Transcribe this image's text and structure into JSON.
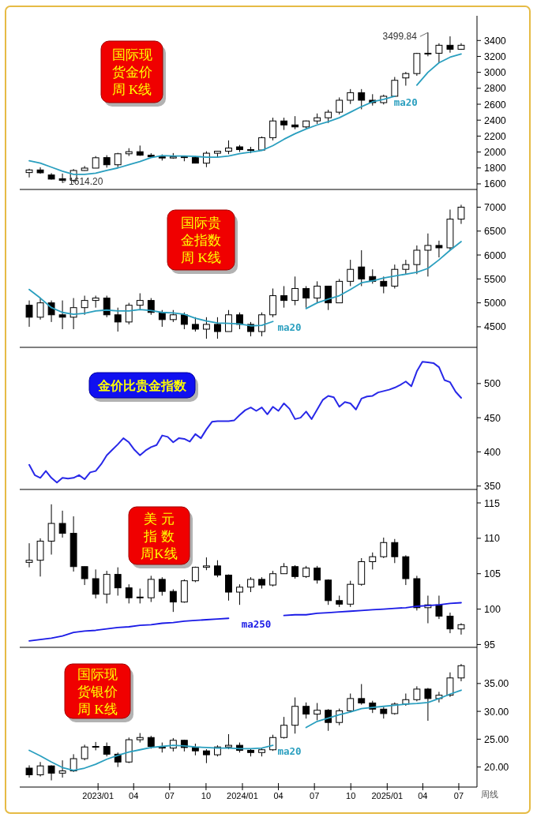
{
  "chart_data": [
    {
      "type": "candlestick",
      "title": "国际现货金价周 K线",
      "tick_labels": "y",
      "xlim": [
        "2022-06-17",
        "2025-08-16"
      ],
      "ylim": [
        1530,
        3710
      ],
      "yticks": [
        1600,
        1800,
        2000,
        2200,
        2400,
        2600,
        2800,
        3000,
        3200,
        3400
      ],
      "x": [
        "2022-07-11",
        "2022-08-08",
        "2022-09-05",
        "2022-10-03",
        "2022-10-31",
        "2022-11-28",
        "2022-12-26",
        "2023-01-23",
        "2023-02-20",
        "2023-03-20",
        "2023-04-17",
        "2023-05-15",
        "2023-06-12",
        "2023-07-10",
        "2023-08-07",
        "2023-09-04",
        "2023-10-02",
        "2023-10-30",
        "2023-11-27",
        "2023-12-25",
        "2024-01-22",
        "2024-02-19",
        "2024-03-18",
        "2024-04-15",
        "2024-05-13",
        "2024-06-10",
        "2024-07-08",
        "2024-08-05",
        "2024-09-02",
        "2024-09-30",
        "2024-10-28",
        "2024-11-25",
        "2024-12-23",
        "2025-01-20",
        "2025-02-17",
        "2025-03-17",
        "2025-04-14",
        "2025-05-12",
        "2025-06-09",
        "2025-07-07"
      ],
      "ohlc": [
        [
          1742,
          1790,
          1681,
          1775
        ],
        [
          1775,
          1808,
          1727,
          1739
        ],
        [
          1712,
          1735,
          1654,
          1660
        ],
        [
          1665,
          1730,
          1614.2,
          1645
        ],
        [
          1645,
          1786,
          1617,
          1768
        ],
        [
          1768,
          1824,
          1765,
          1798
        ],
        [
          1798,
          1949,
          1797,
          1928
        ],
        [
          1930,
          1960,
          1804,
          1840
        ],
        [
          1840,
          1990,
          1809,
          1978
        ],
        [
          1978,
          2048,
          1950,
          2004
        ],
        [
          2004,
          2081,
          1952,
          1960
        ],
        [
          1960,
          1985,
          1932,
          1940
        ],
        [
          1940,
          1970,
          1893,
          1925
        ],
        [
          1925,
          1987,
          1915,
          1940
        ],
        [
          1940,
          1945,
          1884,
          1930
        ],
        [
          1930,
          1948,
          1858,
          1860
        ],
        [
          1860,
          2009,
          1810,
          1985
        ],
        [
          1985,
          2015,
          1932,
          2010
        ],
        [
          2010,
          2146,
          1973,
          2050
        ],
        [
          2065,
          2088,
          2001,
          2030
        ],
        [
          2030,
          2065,
          1985,
          2025
        ],
        [
          2025,
          2195,
          2016,
          2180
        ],
        [
          2180,
          2431,
          2146,
          2390
        ],
        [
          2390,
          2431,
          2277,
          2340
        ],
        [
          2340,
          2450,
          2286,
          2315
        ],
        [
          2315,
          2395,
          2295,
          2390
        ],
        [
          2390,
          2484,
          2353,
          2430
        ],
        [
          2430,
          2531,
          2364,
          2500
        ],
        [
          2500,
          2685,
          2472,
          2650
        ],
        [
          2650,
          2790,
          2603,
          2745
        ],
        [
          2745,
          2790,
          2536,
          2650
        ],
        [
          2650,
          2726,
          2583,
          2620
        ],
        [
          2620,
          2720,
          2597,
          2700
        ],
        [
          2700,
          2942,
          2690,
          2900
        ],
        [
          2930,
          3005,
          2833,
          2985
        ],
        [
          2985,
          3245,
          2957,
          3237
        ],
        [
          3237,
          3499.84,
          3202,
          3240
        ],
        [
          3240,
          3365,
          3120,
          3340
        ],
        [
          3340,
          3452,
          3247,
          3290
        ],
        [
          3290,
          3366,
          3282,
          3340
        ]
      ],
      "series": [
        {
          "type": "line",
          "name": "ma20",
          "color": "#2a9fbf",
          "values": [
            1890,
            1860,
            1810,
            1760,
            1720,
            1720,
            1735,
            1770,
            1800,
            1840,
            1880,
            1930,
            1955,
            1950,
            1950,
            1945,
            1935,
            1935,
            1950,
            1980,
            2000,
            2020,
            2080,
            2160,
            2230,
            2290,
            2340,
            2380,
            2430,
            2500,
            2570,
            2630,
            2660,
            2700,
            null,
            2840,
            3000,
            3120,
            3190,
            3230
          ]
        }
      ],
      "annotations": [
        {
          "text": "3499.84",
          "x": "2025-04-14",
          "y": 3499.84
        },
        {
          "text": "1614.20",
          "x": "2022-10-03",
          "y": 1614.2
        }
      ]
    },
    {
      "type": "candlestick",
      "title": "国际贵金指数周 K线",
      "tick_labels": "y",
      "xlim": [
        "2022-06-17",
        "2025-08-16"
      ],
      "ylim": [
        4070,
        7370
      ],
      "yticks": [
        4500,
        5000,
        5500,
        6000,
        6500,
        7000
      ],
      "x": [
        "2022-07-11",
        "2022-08-08",
        "2022-09-05",
        "2022-10-03",
        "2022-10-31",
        "2022-11-28",
        "2022-12-26",
        "2023-01-23",
        "2023-02-20",
        "2023-03-20",
        "2023-04-17",
        "2023-05-15",
        "2023-06-12",
        "2023-07-10",
        "2023-08-07",
        "2023-09-04",
        "2023-10-02",
        "2023-10-30",
        "2023-11-27",
        "2023-12-25",
        "2024-01-22",
        "2024-02-19",
        "2024-03-18",
        "2024-04-15",
        "2024-05-13",
        "2024-06-10",
        "2024-07-08",
        "2024-08-05",
        "2024-09-02",
        "2024-09-30",
        "2024-10-28",
        "2024-11-25",
        "2024-12-23",
        "2025-01-20",
        "2025-02-17",
        "2025-03-17",
        "2025-04-14",
        "2025-05-12",
        "2025-06-09",
        "2025-07-07"
      ],
      "ohlc": [
        [
          4950,
          5050,
          4500,
          4700
        ],
        [
          4700,
          5100,
          4650,
          5000
        ],
        [
          5000,
          5050,
          4600,
          4750
        ],
        [
          4750,
          5050,
          4450,
          4700
        ],
        [
          4700,
          5100,
          4450,
          4900
        ],
        [
          4900,
          5150,
          4750,
          5050
        ],
        [
          5050,
          5150,
          4900,
          5100
        ],
        [
          5100,
          5150,
          4700,
          4750
        ],
        [
          4750,
          4900,
          4400,
          4600
        ],
        [
          4600,
          5000,
          4550,
          4950
        ],
        [
          4950,
          5200,
          4850,
          5050
        ],
        [
          5050,
          5100,
          4750,
          4800
        ],
        [
          4800,
          4850,
          4500,
          4650
        ],
        [
          4650,
          4850,
          4600,
          4750
        ],
        [
          4750,
          4800,
          4450,
          4550
        ],
        [
          4550,
          4700,
          4400,
          4450
        ],
        [
          4450,
          4700,
          4250,
          4550
        ],
        [
          4550,
          4700,
          4250,
          4400
        ],
        [
          4400,
          4850,
          4400,
          4750
        ],
        [
          4750,
          4800,
          4450,
          4550
        ],
        [
          4550,
          4600,
          4300,
          4400
        ],
        [
          4400,
          4800,
          4300,
          4750
        ],
        [
          4750,
          5300,
          4700,
          5150
        ],
        [
          5150,
          5350,
          4900,
          5050
        ],
        [
          5050,
          5550,
          4950,
          5300
        ],
        [
          5300,
          5350,
          4900,
          5100
        ],
        [
          5100,
          5450,
          5000,
          5350
        ],
        [
          5350,
          5350,
          4850,
          5000
        ],
        [
          5000,
          5500,
          5000,
          5450
        ],
        [
          5450,
          5900,
          5350,
          5700
        ],
        [
          5750,
          6100,
          5350,
          5500
        ],
        [
          5550,
          5700,
          5400,
          5450
        ],
        [
          5450,
          5550,
          5200,
          5350
        ],
        [
          5350,
          5800,
          5300,
          5700
        ],
        [
          5700,
          5900,
          5600,
          5800
        ],
        [
          5800,
          6200,
          5600,
          6100
        ],
        [
          6100,
          6450,
          5550,
          6200
        ],
        [
          6200,
          6300,
          5950,
          6150
        ],
        [
          6150,
          6950,
          6100,
          6750
        ],
        [
          6750,
          7050,
          6650,
          7000
        ]
      ],
      "series": [
        {
          "type": "line",
          "name": "ma20",
          "color": "#2a9fbf",
          "values": [
            5280,
            5100,
            4900,
            4800,
            4760,
            4780,
            4830,
            4850,
            4830,
            4830,
            4860,
            4840,
            4800,
            4790,
            4760,
            4680,
            4620,
            4580,
            4570,
            4560,
            4520,
            4530,
            4610,
            null,
            null,
            4880,
            5000,
            5080,
            5150,
            5280,
            5420,
            5460,
            5520,
            5560,
            5600,
            5640,
            5720,
            5900,
            6100,
            6280
          ]
        }
      ]
    },
    {
      "type": "line",
      "title": "金价比贵金指数",
      "tick_labels": "y",
      "xlim": [
        "2022-06-17",
        "2025-08-16"
      ],
      "ylim": [
        345,
        553
      ],
      "yticks": [
        350,
        400,
        450,
        500
      ],
      "x": [
        "2022-07-11",
        "2022-07-25",
        "2022-08-08",
        "2022-08-22",
        "2022-09-05",
        "2022-09-19",
        "2022-10-03",
        "2022-10-17",
        "2022-10-31",
        "2022-11-14",
        "2022-11-28",
        "2022-12-12",
        "2022-12-26",
        "2023-01-09",
        "2023-01-23",
        "2023-02-06",
        "2023-02-20",
        "2023-03-06",
        "2023-03-20",
        "2023-04-03",
        "2023-04-17",
        "2023-05-01",
        "2023-05-15",
        "2023-05-29",
        "2023-06-12",
        "2023-06-26",
        "2023-07-10",
        "2023-07-24",
        "2023-08-07",
        "2023-08-21",
        "2023-09-04",
        "2023-09-18",
        "2023-10-02",
        "2023-10-16",
        "2023-10-30",
        "2023-11-13",
        "2023-11-27",
        "2023-12-11",
        "2023-12-25",
        "2024-01-08",
        "2024-01-22",
        "2024-02-05",
        "2024-02-19",
        "2024-03-04",
        "2024-03-18",
        "2024-04-01",
        "2024-04-15",
        "2024-04-29",
        "2024-05-13",
        "2024-05-27",
        "2024-06-10",
        "2024-06-24",
        "2024-07-08",
        "2024-07-22",
        "2024-08-05",
        "2024-08-19",
        "2024-09-02",
        "2024-09-16",
        "2024-09-30",
        "2024-10-14",
        "2024-10-28",
        "2024-11-11",
        "2024-11-25",
        "2024-12-09",
        "2024-12-23",
        "2025-01-06",
        "2025-01-20",
        "2025-02-03",
        "2025-02-17",
        "2025-03-03",
        "2025-03-17",
        "2025-03-31",
        "2025-04-14",
        "2025-04-28",
        "2025-05-12",
        "2025-05-26",
        "2025-06-09",
        "2025-06-23",
        "2025-07-07"
      ],
      "series": [
        {
          "color": "#2828e8",
          "values": [
            381,
            366,
            362,
            372,
            362,
            355,
            362,
            361,
            362,
            366,
            360,
            370,
            372,
            382,
            395,
            403,
            411,
            420,
            414,
            403,
            395,
            402,
            407,
            410,
            424,
            422,
            414,
            420,
            419,
            415,
            426,
            420,
            433,
            444,
            445,
            445,
            445,
            446,
            454,
            461,
            465,
            460,
            465,
            455,
            466,
            460,
            471,
            463,
            448,
            450,
            459,
            448,
            462,
            476,
            482,
            480,
            466,
            473,
            471,
            462,
            478,
            481,
            482,
            487,
            489,
            491,
            494,
            498,
            503,
            496,
            518,
            532,
            531,
            530,
            524,
            505,
            502,
            488,
            479
          ]
        }
      ]
    },
    {
      "type": "candlestick",
      "title": "美 元指 数周K线",
      "tick_labels": "y",
      "xlim": [
        "2022-06-17",
        "2025-08-16"
      ],
      "ylim": [
        94.6,
        116.9
      ],
      "yticks": [
        95,
        100,
        105,
        110,
        115
      ],
      "x": [
        "2022-07-11",
        "2022-08-08",
        "2022-09-05",
        "2022-10-03",
        "2022-10-31",
        "2022-11-28",
        "2022-12-26",
        "2023-01-23",
        "2023-02-20",
        "2023-03-20",
        "2023-04-17",
        "2023-05-15",
        "2023-06-12",
        "2023-07-10",
        "2023-08-07",
        "2023-09-04",
        "2023-10-02",
        "2023-10-30",
        "2023-11-27",
        "2023-12-25",
        "2024-01-22",
        "2024-02-19",
        "2024-03-18",
        "2024-04-15",
        "2024-05-13",
        "2024-06-10",
        "2024-07-08",
        "2024-08-05",
        "2024-09-02",
        "2024-09-30",
        "2024-10-28",
        "2024-11-25",
        "2024-12-23",
        "2025-01-20",
        "2025-02-17",
        "2025-03-17",
        "2025-04-14",
        "2025-05-12",
        "2025-06-09",
        "2025-07-07"
      ],
      "ohlc": [
        [
          106.6,
          109.3,
          105.9,
          106.9
        ],
        [
          106.9,
          110.0,
          104.6,
          109.6
        ],
        [
          109.6,
          114.8,
          107.7,
          112.1
        ],
        [
          112.1,
          113.9,
          110.1,
          110.7
        ],
        [
          110.7,
          113.1,
          105.3,
          106.0
        ],
        [
          106.0,
          106.0,
          103.4,
          104.3
        ],
        [
          104.3,
          105.6,
          101.5,
          102.1
        ],
        [
          102.1,
          105.4,
          100.8,
          104.9
        ],
        [
          104.9,
          105.9,
          101.9,
          103.0
        ],
        [
          103.0,
          103.5,
          100.8,
          101.6
        ],
        [
          101.7,
          102.9,
          100.8,
          101.6
        ],
        [
          101.6,
          104.7,
          101.0,
          104.2
        ],
        [
          104.2,
          104.5,
          101.9,
          102.5
        ],
        [
          102.5,
          102.8,
          99.6,
          101.0
        ],
        [
          101.0,
          104.2,
          100.9,
          104.0
        ],
        [
          104.0,
          106.0,
          103.8,
          105.9
        ],
        [
          105.9,
          107.3,
          105.5,
          106.1
        ],
        [
          106.1,
          106.9,
          104.5,
          104.8
        ],
        [
          104.8,
          104.9,
          101.2,
          102.4
        ],
        [
          102.4,
          103.5,
          100.6,
          103.1
        ],
        [
          103.1,
          104.5,
          102.4,
          104.2
        ],
        [
          104.2,
          104.5,
          102.9,
          103.4
        ],
        [
          103.4,
          105.4,
          103.2,
          105.0
        ],
        [
          105.0,
          106.5,
          105.0,
          106.0
        ],
        [
          106.0,
          106.2,
          104.3,
          104.6
        ],
        [
          104.6,
          106.1,
          104.4,
          105.8
        ],
        [
          105.8,
          106.1,
          103.6,
          104.1
        ],
        [
          104.1,
          104.2,
          100.6,
          101.2
        ],
        [
          101.2,
          101.9,
          100.3,
          100.7
        ],
        [
          100.7,
          104.0,
          100.3,
          103.5
        ],
        [
          103.5,
          107.2,
          103.3,
          106.7
        ],
        [
          106.7,
          108.0,
          105.6,
          107.4
        ],
        [
          107.4,
          110.1,
          107.2,
          109.4
        ],
        [
          109.4,
          109.9,
          106.5,
          107.4
        ],
        [
          107.4,
          107.6,
          103.4,
          104.3
        ],
        [
          104.3,
          104.7,
          99.8,
          100.2
        ],
        [
          100.2,
          101.9,
          98.0,
          100.6
        ],
        [
          100.6,
          101.9,
          98.6,
          99.0
        ],
        [
          99.0,
          99.5,
          96.6,
          97.2
        ],
        [
          97.2,
          98.0,
          96.4,
          97.8
        ]
      ],
      "series": [
        {
          "type": "line",
          "name": "ma250",
          "color": "#1a1ae6",
          "values": [
            95.5,
            95.7,
            95.9,
            96.2,
            96.7,
            96.9,
            97.0,
            97.2,
            97.4,
            97.5,
            97.7,
            97.8,
            98.0,
            98.1,
            98.3,
            98.4,
            98.5,
            98.6,
            98.7,
            null,
            null,
            null,
            null,
            99.1,
            99.2,
            99.2,
            99.4,
            99.5,
            99.6,
            99.7,
            99.8,
            99.9,
            100.0,
            100.1,
            100.2,
            100.4,
            100.5,
            100.6,
            100.8,
            100.9
          ]
        }
      ]
    },
    {
      "type": "candlestick",
      "title": "国际现货银价周 K线",
      "xlim": [
        "2022-06-17",
        "2025-08-16"
      ],
      "ylim": [
        16.4,
        41.5
      ],
      "yticks": [
        {
          "value": 20,
          "label": "20.00"
        },
        {
          "value": 25,
          "label": "25.00"
        },
        {
          "value": 30,
          "label": "30.00"
        },
        {
          "value": 35,
          "label": "35.00"
        }
      ],
      "xticks": [
        {
          "value": "2023-01",
          "label": "2023/01"
        },
        {
          "value": "2023-04",
          "label": "04"
        },
        {
          "value": "2023-07",
          "label": "07"
        },
        {
          "value": "2023-10",
          "label": "10"
        },
        {
          "value": "2024-01",
          "label": "2024/01"
        },
        {
          "value": "2024-04",
          "label": "04"
        },
        {
          "value": "2024-07",
          "label": "07"
        },
        {
          "value": "2024-10",
          "label": "10"
        },
        {
          "value": "2025-01",
          "label": "2025/01"
        },
        {
          "value": "2025-04",
          "label": "04"
        },
        {
          "value": "2025-07",
          "label": "07"
        }
      ],
      "x": [
        "2022-07-11",
        "2022-08-08",
        "2022-09-05",
        "2022-10-03",
        "2022-10-31",
        "2022-11-28",
        "2022-12-26",
        "2023-01-23",
        "2023-02-20",
        "2023-03-20",
        "2023-04-17",
        "2023-05-15",
        "2023-06-12",
        "2023-07-10",
        "2023-08-07",
        "2023-09-04",
        "2023-10-02",
        "2023-10-30",
        "2023-11-27",
        "2023-12-25",
        "2024-01-22",
        "2024-02-19",
        "2024-03-18",
        "2024-04-15",
        "2024-05-13",
        "2024-06-10",
        "2024-07-08",
        "2024-08-05",
        "2024-09-02",
        "2024-09-30",
        "2024-10-28",
        "2024-11-25",
        "2024-12-23",
        "2025-01-20",
        "2025-02-17",
        "2025-03-17",
        "2025-04-14",
        "2025-05-12",
        "2025-06-09",
        "2025-07-07"
      ],
      "ohlc": [
        [
          19.8,
          20.3,
          18.1,
          18.6
        ],
        [
          18.6,
          20.9,
          18.3,
          20.2
        ],
        [
          20.2,
          20.3,
          17.6,
          18.9
        ],
        [
          18.9,
          21.2,
          18.1,
          19.3
        ],
        [
          19.3,
          22.3,
          19.1,
          21.5
        ],
        [
          21.5,
          24.0,
          21.2,
          23.6
        ],
        [
          23.6,
          24.5,
          23.0,
          23.7
        ],
        [
          23.7,
          24.4,
          21.9,
          22.3
        ],
        [
          22.3,
          22.6,
          20.0,
          20.9
        ],
        [
          20.9,
          25.3,
          20.7,
          24.9
        ],
        [
          24.9,
          26.1,
          24.4,
          25.3
        ],
        [
          25.3,
          25.6,
          23.3,
          23.7
        ],
        [
          23.7,
          24.4,
          22.6,
          23.4
        ],
        [
          23.4,
          25.2,
          22.8,
          24.8
        ],
        [
          24.8,
          24.9,
          22.8,
          23.5
        ],
        [
          23.5,
          24.2,
          22.1,
          22.9
        ],
        [
          22.9,
          23.2,
          20.7,
          22.2
        ],
        [
          22.2,
          23.9,
          21.9,
          23.6
        ],
        [
          23.6,
          25.9,
          23.2,
          23.9
        ],
        [
          23.9,
          24.4,
          22.6,
          23.0
        ],
        [
          23.0,
          23.3,
          21.9,
          22.6
        ],
        [
          22.6,
          23.4,
          21.9,
          23.1
        ],
        [
          23.1,
          25.8,
          22.9,
          25.3
        ],
        [
          25.3,
          29.0,
          25.1,
          27.5
        ],
        [
          27.5,
          32.5,
          26.0,
          30.9
        ],
        [
          30.9,
          31.6,
          28.7,
          29.5
        ],
        [
          29.5,
          31.5,
          28.4,
          30.2
        ],
        [
          30.2,
          30.4,
          26.5,
          28.0
        ],
        [
          28.0,
          30.5,
          27.5,
          30.1
        ],
        [
          30.1,
          33.2,
          29.9,
          32.3
        ],
        [
          32.3,
          34.9,
          31.2,
          31.5
        ],
        [
          31.5,
          31.9,
          29.7,
          30.4
        ],
        [
          30.4,
          30.8,
          28.7,
          29.6
        ],
        [
          29.6,
          31.6,
          29.4,
          31.3
        ],
        [
          31.3,
          33.2,
          31.0,
          32.1
        ],
        [
          32.1,
          34.5,
          31.8,
          34.0
        ],
        [
          34.0,
          34.2,
          28.3,
          32.3
        ],
        [
          32.3,
          33.5,
          31.6,
          32.9
        ],
        [
          32.9,
          37.0,
          32.6,
          36.0
        ],
        [
          36.0,
          38.5,
          35.4,
          38.2
        ]
      ],
      "series": [
        {
          "type": "line",
          "name": "ma20",
          "color": "#2a9fbf",
          "values": [
            23.0,
            22.0,
            20.9,
            19.9,
            19.4,
            19.8,
            20.5,
            21.4,
            22.1,
            22.7,
            23.1,
            23.5,
            23.7,
            23.9,
            23.8,
            23.6,
            23.5,
            23.4,
            23.4,
            23.3,
            23.3,
            23.4,
            23.9,
            null,
            null,
            27.1,
            28.2,
            28.8,
            29.4,
            29.9,
            30.5,
            30.7,
            30.9,
            31.1,
            31.3,
            31.4,
            31.6,
            32.3,
            33.1,
            33.8
          ]
        }
      ],
      "annotations": [
        "周线"
      ]
    }
  ]
}
